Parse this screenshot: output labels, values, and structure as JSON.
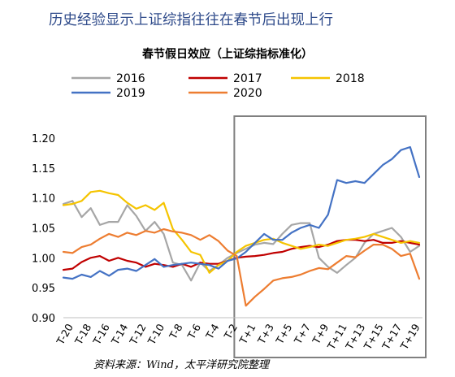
{
  "page": {
    "heading": "历史经验显示上证综指往往在春节后出现上行",
    "source": "资料来源：Wind，太平洋研究院整理"
  },
  "chart_data": {
    "type": "line",
    "title": "春节假日效应（上证综指标准化）",
    "xlabel": "",
    "ylabel": "",
    "ylim": [
      0.9,
      1.2
    ],
    "yticks": [
      "0.90",
      "0.95",
      "1.00",
      "1.05",
      "1.10",
      "1.15",
      "1.20"
    ],
    "grid": false,
    "legend": "top",
    "highlight_range": [
      "T-1",
      "T+20"
    ],
    "x": [
      "T-20",
      "T-19",
      "T-18",
      "T-17",
      "T-16",
      "T-15",
      "T-14",
      "T-13",
      "T-12",
      "T-11",
      "T-10",
      "T-9",
      "T-8",
      "T-7",
      "T-6",
      "T-5",
      "T-4",
      "T-3",
      "T-2",
      "T-1",
      "T+1",
      "T+2",
      "T+3",
      "T+4",
      "T+5",
      "T+6",
      "T+7",
      "T+8",
      "T+9",
      "T+10",
      "T+11",
      "T+12",
      "T+13",
      "T+14",
      "T+15",
      "T+16",
      "T+17",
      "T+18",
      "T+19",
      "T+20"
    ],
    "xtick_labels": [
      "T-20",
      "T-18",
      "T-16",
      "T-14",
      "T-12",
      "T-10",
      "T-8",
      "T-6",
      "T-4",
      "T-2",
      "T+1",
      "T+3",
      "T+5",
      "T+7",
      "T+9",
      "T+11",
      "T+13",
      "T+15",
      "T+17",
      "T+19"
    ],
    "series": [
      {
        "name": "2016",
        "color": "#a6a6a6",
        "values": [
          1.09,
          1.095,
          1.068,
          1.083,
          1.055,
          1.06,
          1.06,
          1.088,
          1.07,
          1.045,
          1.06,
          1.04,
          0.992,
          0.988,
          0.962,
          0.992,
          0.978,
          0.988,
          1.0,
          1.008,
          1.015,
          1.022,
          1.025,
          1.023,
          1.04,
          1.055,
          1.058,
          1.058,
          1.0,
          0.985,
          0.975,
          0.988,
          1.0,
          1.025,
          1.04,
          1.045,
          1.05,
          1.035,
          1.01,
          1.02
        ]
      },
      {
        "name": "2017",
        "color": "#c00000",
        "values": [
          0.98,
          0.982,
          0.993,
          1.0,
          1.003,
          0.995,
          1.0,
          0.995,
          0.992,
          0.985,
          0.99,
          0.988,
          0.985,
          0.99,
          0.985,
          0.992,
          0.99,
          0.99,
          0.995,
          1.0,
          1.002,
          1.003,
          1.005,
          1.008,
          1.01,
          1.015,
          1.018,
          1.02,
          1.018,
          1.022,
          1.028,
          1.03,
          1.03,
          1.028,
          1.03,
          1.025,
          1.025,
          1.028,
          1.025,
          1.022
        ]
      },
      {
        "name": "2018",
        "color": "#f5c400",
        "values": [
          1.088,
          1.09,
          1.095,
          1.11,
          1.112,
          1.108,
          1.105,
          1.092,
          1.082,
          1.088,
          1.08,
          1.092,
          1.048,
          1.03,
          1.01,
          1.005,
          0.975,
          0.988,
          0.995,
          1.01,
          1.02,
          1.025,
          1.03,
          1.032,
          1.025,
          1.02,
          1.015,
          1.018,
          1.022,
          1.02,
          1.025,
          1.03,
          1.032,
          1.035,
          1.04,
          1.035,
          1.03,
          1.025,
          1.028,
          1.025
        ]
      },
      {
        "name": "2019",
        "color": "#4472c4",
        "values": [
          0.967,
          0.965,
          0.972,
          0.968,
          0.978,
          0.97,
          0.98,
          0.982,
          0.978,
          0.988,
          0.998,
          0.985,
          0.988,
          0.99,
          0.992,
          0.99,
          0.988,
          0.982,
          0.995,
          0.999,
          1.01,
          1.025,
          1.04,
          1.03,
          1.03,
          1.042,
          1.05,
          1.055,
          1.05,
          1.072,
          1.13,
          1.125,
          1.128,
          1.125,
          1.14,
          1.155,
          1.165,
          1.18,
          1.185,
          1.135
        ]
      },
      {
        "name": "2020",
        "color": "#ed7d31",
        "values": [
          1.01,
          1.008,
          1.018,
          1.022,
          1.032,
          1.04,
          1.035,
          1.042,
          1.038,
          1.045,
          1.042,
          1.048,
          1.044,
          1.042,
          1.038,
          1.03,
          1.038,
          1.028,
          1.012,
          1.003,
          0.92,
          0.935,
          0.948,
          0.962,
          0.966,
          0.968,
          0.972,
          0.978,
          0.983,
          0.981,
          0.992,
          1.003,
          1.001,
          1.012,
          1.022,
          1.022,
          1.015,
          1.003,
          1.007,
          0.965
        ]
      }
    ]
  }
}
